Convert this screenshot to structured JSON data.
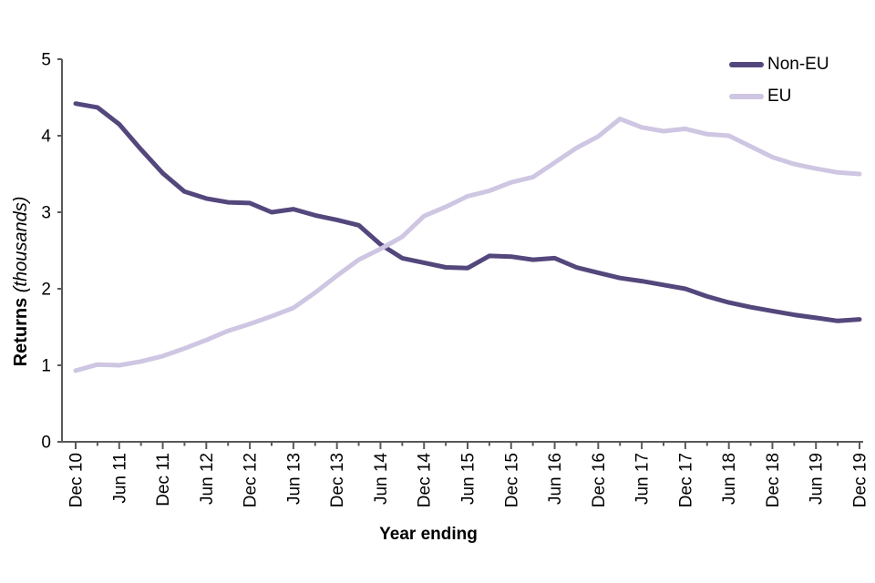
{
  "figure": {
    "ylabel_bold": "Returns",
    "ylabel_italic": " (thousands)",
    "xlabel": "Year ending"
  },
  "chart_data": {
    "type": "line",
    "title": "",
    "xlabel": "Year ending",
    "ylabel": "Returns (thousands)",
    "ylim": [
      0,
      5
    ],
    "yticks": [
      0,
      1,
      2,
      3,
      4,
      5
    ],
    "grid": false,
    "legend_position": "top-right",
    "axis_color": "#595959",
    "text_color": "#000000",
    "categories": [
      "Dec 10",
      "Mar 11",
      "Jun 11",
      "Sep 11",
      "Dec 11",
      "Mar 12",
      "Jun 12",
      "Sep 12",
      "Dec 12",
      "Mar 13",
      "Jun 13",
      "Sep 13",
      "Dec 13",
      "Mar 14",
      "Jun 14",
      "Sep 14",
      "Dec 14",
      "Mar 15",
      "Jun 15",
      "Sep 15",
      "Dec 15",
      "Mar 16",
      "Jun 16",
      "Sep 16",
      "Dec 16",
      "Mar 17",
      "Jun 17",
      "Sep 17",
      "Dec 17",
      "Mar 18",
      "Jun 18",
      "Sep 18",
      "Dec 18",
      "Mar 19",
      "Jun 19",
      "Sep 19",
      "Dec 19"
    ],
    "xtick_labels": [
      "Dec 10",
      "Jun 11",
      "Dec 11",
      "Jun 12",
      "Dec 12",
      "Jun 13",
      "Dec 13",
      "Jun 14",
      "Dec 14",
      "Jun 15",
      "Dec 15",
      "Jun 16",
      "Dec 16",
      "Jun 17",
      "Dec 17",
      "Jun 18",
      "Dec 18",
      "Jun 19",
      "Dec 19"
    ],
    "series": [
      {
        "name": "Non-EU",
        "color": "#54477c",
        "values": [
          4.42,
          4.37,
          4.15,
          3.82,
          3.51,
          3.27,
          3.18,
          3.13,
          3.12,
          3.0,
          3.04,
          2.96,
          2.9,
          2.83,
          2.58,
          2.4,
          2.34,
          2.28,
          2.27,
          2.43,
          2.42,
          2.38,
          2.4,
          2.28,
          2.21,
          2.14,
          2.1,
          2.05,
          2.0,
          1.9,
          1.82,
          1.76,
          1.71,
          1.66,
          1.62,
          1.58,
          1.6
        ]
      },
      {
        "name": "EU",
        "color": "#cec6e2",
        "values": [
          0.93,
          1.01,
          1.0,
          1.05,
          1.12,
          1.22,
          1.33,
          1.45,
          1.54,
          1.64,
          1.75,
          1.95,
          2.17,
          2.38,
          2.52,
          2.68,
          2.95,
          3.07,
          3.21,
          3.28,
          3.39,
          3.46,
          3.65,
          3.84,
          3.99,
          4.22,
          4.11,
          4.06,
          4.09,
          4.02,
          4.0,
          3.86,
          3.72,
          3.63,
          3.57,
          3.52,
          3.5
        ]
      }
    ]
  }
}
